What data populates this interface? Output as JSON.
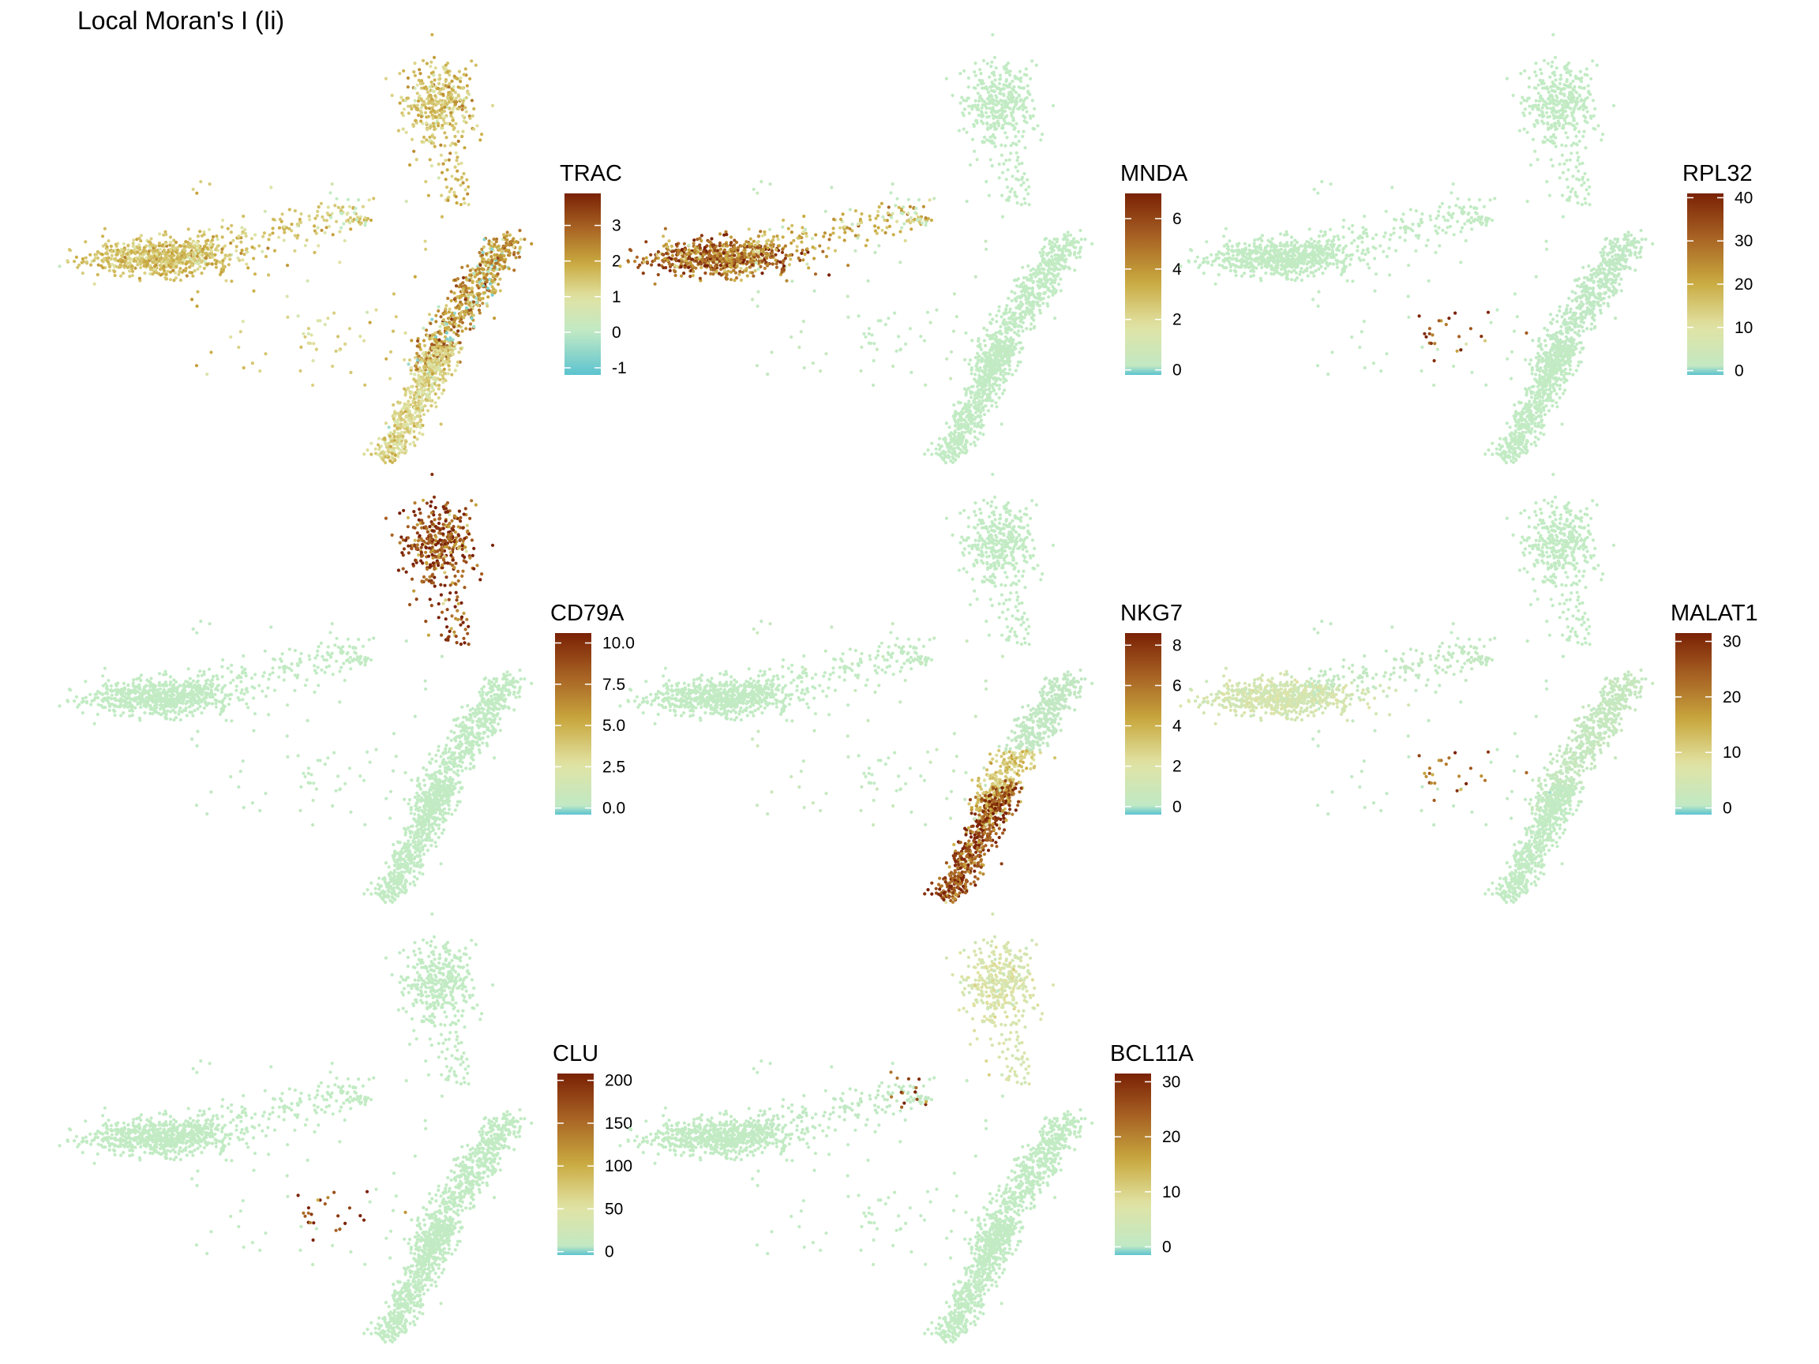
{
  "title": "Local Moran's I (Ii)",
  "colors": {
    "low_negative": "#5cc3cf",
    "zero": "#bfe9c6",
    "light": "#e1e3a4",
    "mid": "#c9a93f",
    "high_mid": "#a86324",
    "high": "#7a2105",
    "background_point": "#c2ebc4"
  },
  "chart_data": [
    {
      "type": "scatter",
      "legend_title": "TRAC",
      "color_range": [
        -1.2,
        3.9
      ],
      "ticks": [
        {
          "value": 3,
          "label": "3"
        },
        {
          "value": 2,
          "label": "2"
        },
        {
          "value": 1,
          "label": "1"
        },
        {
          "value": 0,
          "label": "0"
        },
        {
          "value": -1,
          "label": "-1"
        }
      ],
      "clusters": {
        "left_blob": 1.5,
        "left_arm": 1.4,
        "top_cluster": 1.5,
        "diag_upper": 2.1,
        "diag_lower": 1.2,
        "scatter_mid": 1.3,
        "small_group": 1.0
      }
    },
    {
      "type": "scatter",
      "legend_title": "MNDA",
      "color_range": [
        -0.2,
        7.0
      ],
      "ticks": [
        {
          "value": 6,
          "label": "6"
        },
        {
          "value": 4,
          "label": "4"
        },
        {
          "value": 2,
          "label": "2"
        },
        {
          "value": 0,
          "label": "0"
        }
      ],
      "clusters": {
        "left_blob": 4.8,
        "left_arm": 3.0,
        "top_cluster": 0,
        "diag_upper": 0,
        "diag_lower": 0,
        "scatter_mid": 0.3,
        "small_group": 0
      }
    },
    {
      "type": "scatter",
      "legend_title": "RPL32",
      "color_range": [
        -1.0,
        41.0
      ],
      "ticks": [
        {
          "value": 40,
          "label": "40"
        },
        {
          "value": 30,
          "label": "30"
        },
        {
          "value": 20,
          "label": "20"
        },
        {
          "value": 10,
          "label": "10"
        },
        {
          "value": 0,
          "label": "0"
        }
      ],
      "clusters": {
        "left_blob": 0,
        "left_arm": 0,
        "top_cluster": 0,
        "diag_upper": 0.5,
        "diag_lower": 0,
        "scatter_mid": 0,
        "small_group": 37
      }
    },
    {
      "type": "scatter",
      "legend_title": "CD79A",
      "color_range": [
        -0.4,
        10.6
      ],
      "ticks": [
        {
          "value": 10,
          "label": "10.0"
        },
        {
          "value": 7.5,
          "label": "7.5"
        },
        {
          "value": 5,
          "label": "5.0"
        },
        {
          "value": 2.5,
          "label": "2.5"
        },
        {
          "value": 0,
          "label": "0.0"
        }
      ],
      "clusters": {
        "left_blob": 0,
        "left_arm": 0,
        "top_cluster": 8.8,
        "diag_upper": 0,
        "diag_lower": 0,
        "scatter_mid": 0.2,
        "small_group": 0
      }
    },
    {
      "type": "scatter",
      "legend_title": "NKG7",
      "color_range": [
        -0.4,
        8.6
      ],
      "ticks": [
        {
          "value": 8,
          "label": "8"
        },
        {
          "value": 6,
          "label": "6"
        },
        {
          "value": 4,
          "label": "4"
        },
        {
          "value": 2,
          "label": "2"
        },
        {
          "value": 0,
          "label": "0"
        }
      ],
      "clusters": {
        "left_blob": 0,
        "left_arm": 0,
        "top_cluster": 0,
        "diag_upper": 0.3,
        "diag_lower": 6.8,
        "scatter_mid": 0.5,
        "small_group": 0
      }
    },
    {
      "type": "scatter",
      "legend_title": "MALAT1",
      "color_range": [
        -1.2,
        31.5
      ],
      "ticks": [
        {
          "value": 30,
          "label": "30"
        },
        {
          "value": 20,
          "label": "20"
        },
        {
          "value": 10,
          "label": "10"
        },
        {
          "value": 0,
          "label": "0"
        }
      ],
      "clusters": {
        "left_blob": 5,
        "left_arm": 1,
        "top_cluster": 0,
        "diag_upper": 1.5,
        "diag_lower": 0,
        "scatter_mid": 0.5,
        "small_group": 22
      }
    },
    {
      "type": "scatter",
      "legend_title": "CLU",
      "color_range": [
        -4,
        208
      ],
      "ticks": [
        {
          "value": 200,
          "label": "200"
        },
        {
          "value": 150,
          "label": "150"
        },
        {
          "value": 100,
          "label": "100"
        },
        {
          "value": 50,
          "label": "50"
        },
        {
          "value": 0,
          "label": "0"
        }
      ],
      "clusters": {
        "left_blob": 0,
        "left_arm": 0,
        "top_cluster": 0,
        "diag_upper": 0,
        "diag_lower": 0,
        "scatter_mid": 0,
        "small_group": 185
      }
    },
    {
      "type": "scatter",
      "legend_title": "BCL11A",
      "color_range": [
        -1.5,
        31.5
      ],
      "ticks": [
        {
          "value": 30,
          "label": "30"
        },
        {
          "value": 20,
          "label": "20"
        },
        {
          "value": 10,
          "label": "10"
        },
        {
          "value": 0,
          "label": "0"
        }
      ],
      "clusters": {
        "left_blob": 0,
        "left_arm": 0.5,
        "top_cluster": 6,
        "diag_upper": 0,
        "diag_lower": 0,
        "scatter_mid": 0,
        "small_group": 0,
        "arm_group": 26
      }
    }
  ]
}
